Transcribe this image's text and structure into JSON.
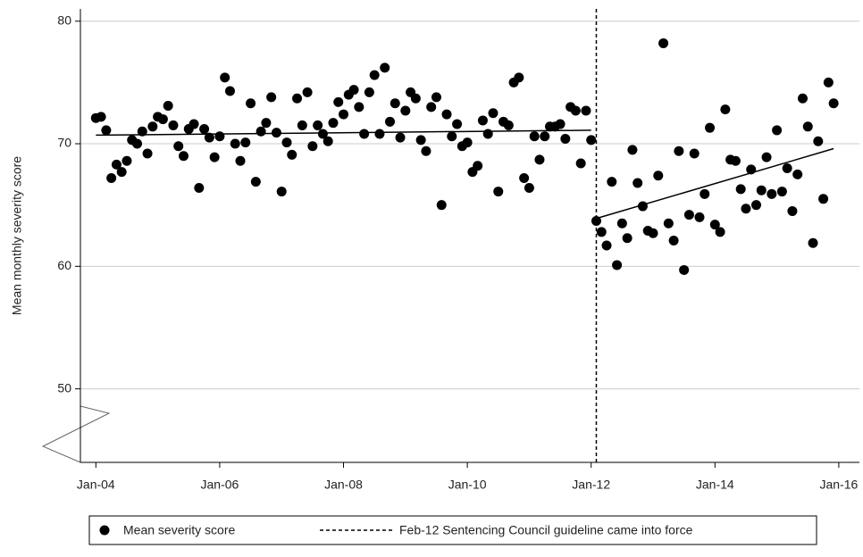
{
  "chart_data": {
    "type": "scatter",
    "y_label": "Mean monthly severity score",
    "x": [
      "2004-01",
      "2004-02",
      "2004-03",
      "2004-04",
      "2004-05",
      "2004-06",
      "2004-07",
      "2004-08",
      "2004-09",
      "2004-10",
      "2004-11",
      "2004-12",
      "2005-01",
      "2005-02",
      "2005-03",
      "2005-04",
      "2005-05",
      "2005-06",
      "2005-07",
      "2005-08",
      "2005-09",
      "2005-10",
      "2005-11",
      "2005-12",
      "2006-01",
      "2006-02",
      "2006-03",
      "2006-04",
      "2006-05",
      "2006-06",
      "2006-07",
      "2006-08",
      "2006-09",
      "2006-10",
      "2006-11",
      "2006-12",
      "2007-01",
      "2007-02",
      "2007-03",
      "2007-04",
      "2007-05",
      "2007-06",
      "2007-07",
      "2007-08",
      "2007-09",
      "2007-10",
      "2007-11",
      "2007-12",
      "2008-01",
      "2008-02",
      "2008-03",
      "2008-04",
      "2008-05",
      "2008-06",
      "2008-07",
      "2008-08",
      "2008-09",
      "2008-10",
      "2008-11",
      "2008-12",
      "2009-01",
      "2009-02",
      "2009-03",
      "2009-04",
      "2009-05",
      "2009-06",
      "2009-07",
      "2009-08",
      "2009-09",
      "2009-10",
      "2009-11",
      "2009-12",
      "2010-01",
      "2010-02",
      "2010-03",
      "2010-04",
      "2010-05",
      "2010-06",
      "2010-07",
      "2010-08",
      "2010-09",
      "2010-10",
      "2010-11",
      "2010-12",
      "2011-01",
      "2011-02",
      "2011-03",
      "2011-04",
      "2011-05",
      "2011-06",
      "2011-07",
      "2011-08",
      "2011-09",
      "2011-10",
      "2011-11",
      "2011-12",
      "2012-01",
      "2012-02",
      "2012-03",
      "2012-04",
      "2012-05",
      "2012-06",
      "2012-07",
      "2012-08",
      "2012-09",
      "2012-10",
      "2012-11",
      "2012-12",
      "2013-01",
      "2013-02",
      "2013-03",
      "2013-04",
      "2013-05",
      "2013-06",
      "2013-07",
      "2013-08",
      "2013-09",
      "2013-10",
      "2013-11",
      "2013-12",
      "2014-01",
      "2014-02",
      "2014-03",
      "2014-04",
      "2014-05",
      "2014-06",
      "2014-07",
      "2014-08",
      "2014-09",
      "2014-10",
      "2014-11",
      "2014-12",
      "2015-01",
      "2015-02",
      "2015-03",
      "2015-04",
      "2015-05",
      "2015-06",
      "2015-07",
      "2015-08",
      "2015-09",
      "2015-10",
      "2015-11",
      "2015-12"
    ],
    "series": [
      {
        "name": "Mean severity score",
        "color": "#000000",
        "values": [
          72.1,
          72.2,
          71.1,
          67.2,
          68.3,
          67.7,
          68.6,
          70.3,
          70.0,
          71.0,
          69.2,
          71.4,
          72.2,
          72.0,
          73.1,
          71.5,
          69.8,
          69.0,
          71.2,
          71.6,
          66.4,
          71.2,
          70.5,
          68.9,
          70.6,
          75.4,
          74.3,
          70.0,
          68.6,
          70.1,
          73.3,
          66.9,
          71.0,
          71.7,
          73.8,
          70.9,
          66.1,
          70.1,
          69.1,
          73.7,
          71.5,
          74.2,
          69.8,
          71.5,
          70.8,
          70.2,
          71.7,
          73.4,
          72.4,
          74.0,
          74.4,
          73.0,
          70.8,
          74.2,
          75.6,
          70.8,
          76.2,
          71.8,
          73.3,
          70.5,
          72.7,
          74.2,
          73.7,
          70.3,
          69.4,
          73.0,
          73.8,
          65.0,
          72.4,
          70.6,
          71.6,
          69.8,
          70.1,
          67.7,
          68.2,
          71.9,
          70.8,
          72.5,
          66.1,
          71.8,
          71.5,
          75.0,
          75.4,
          67.2,
          66.4,
          70.6,
          68.7,
          70.6,
          71.4,
          71.4,
          71.6,
          70.4,
          73.0,
          72.7,
          68.4,
          72.7,
          70.3,
          63.7,
          62.8,
          61.7,
          66.9,
          60.1,
          63.5,
          62.3,
          69.5,
          66.8,
          64.9,
          62.9,
          62.7,
          67.4,
          78.2,
          63.5,
          62.1,
          69.4,
          59.7,
          64.2,
          69.2,
          64.0,
          65.9,
          71.3,
          63.4,
          62.8,
          72.8,
          68.7,
          68.6,
          66.3,
          64.7,
          67.9,
          65.0,
          66.2,
          68.9,
          65.9,
          71.1,
          66.1,
          68.0,
          64.5,
          67.5,
          73.7,
          71.4,
          61.9,
          70.2,
          65.5,
          75.0,
          73.3
        ]
      }
    ],
    "trend_lines": [
      {
        "color": "#000000",
        "x": [
          "2004-01",
          "2012-01"
        ],
        "values": [
          70.7,
          71.1
        ]
      },
      {
        "color": "#000000",
        "x": [
          "2012-02",
          "2015-12"
        ],
        "values": [
          63.9,
          69.6
        ]
      }
    ],
    "reference_line": {
      "x": "2012-02",
      "label": "Feb-12 Sentencing Council guideline came into force",
      "color": "#000000"
    },
    "xlim": [
      "2003-10",
      "2016-05"
    ],
    "xticks": [
      {
        "value": "2004-01",
        "label": "Jan-04"
      },
      {
        "value": "2006-01",
        "label": "Jan-06"
      },
      {
        "value": "2008-01",
        "label": "Jan-08"
      },
      {
        "value": "2010-01",
        "label": "Jan-10"
      },
      {
        "value": "2012-01",
        "label": "Jan-12"
      },
      {
        "value": "2014-01",
        "label": "Jan-14"
      },
      {
        "value": "2016-01",
        "label": "Jan-16"
      }
    ],
    "ylim": [
      44,
      81
    ],
    "yticks": [
      50,
      60,
      70,
      80
    ],
    "grid": true
  }
}
